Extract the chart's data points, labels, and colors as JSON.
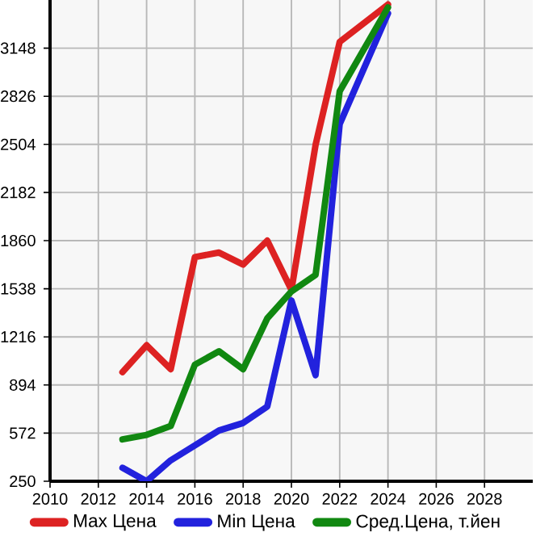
{
  "chart_data": {
    "type": "line",
    "x": [
      2013,
      2014,
      2015,
      2016,
      2017,
      2018,
      2019,
      2020,
      2021,
      2022,
      2024
    ],
    "series": [
      {
        "name": "Max Цена",
        "color": "#dd2222",
        "values": [
          980,
          1160,
          1000,
          1750,
          1780,
          1700,
          1860,
          1530,
          2500,
          3190,
          3440
        ]
      },
      {
        "name": "Min Цена",
        "color": "#2222dd",
        "values": [
          340,
          250,
          390,
          490,
          590,
          640,
          750,
          1460,
          960,
          2640,
          3380
        ]
      },
      {
        "name": "Сред.Цена, т.йен",
        "color": "#118811",
        "values": [
          530,
          560,
          620,
          1030,
          1120,
          1000,
          1340,
          1520,
          1630,
          2860,
          3420
        ]
      }
    ],
    "xlim": [
      2010,
      2030
    ],
    "ylim": [
      250,
      3470
    ],
    "xticks": [
      2010,
      2012,
      2014,
      2016,
      2018,
      2020,
      2022,
      2024,
      2026,
      2028
    ],
    "yticks": [
      250,
      572,
      894,
      1216,
      1538,
      1860,
      2182,
      2504,
      2826,
      3148
    ],
    "grid": true,
    "legend": "bottom",
    "marker": "none",
    "line_style": "solid"
  }
}
